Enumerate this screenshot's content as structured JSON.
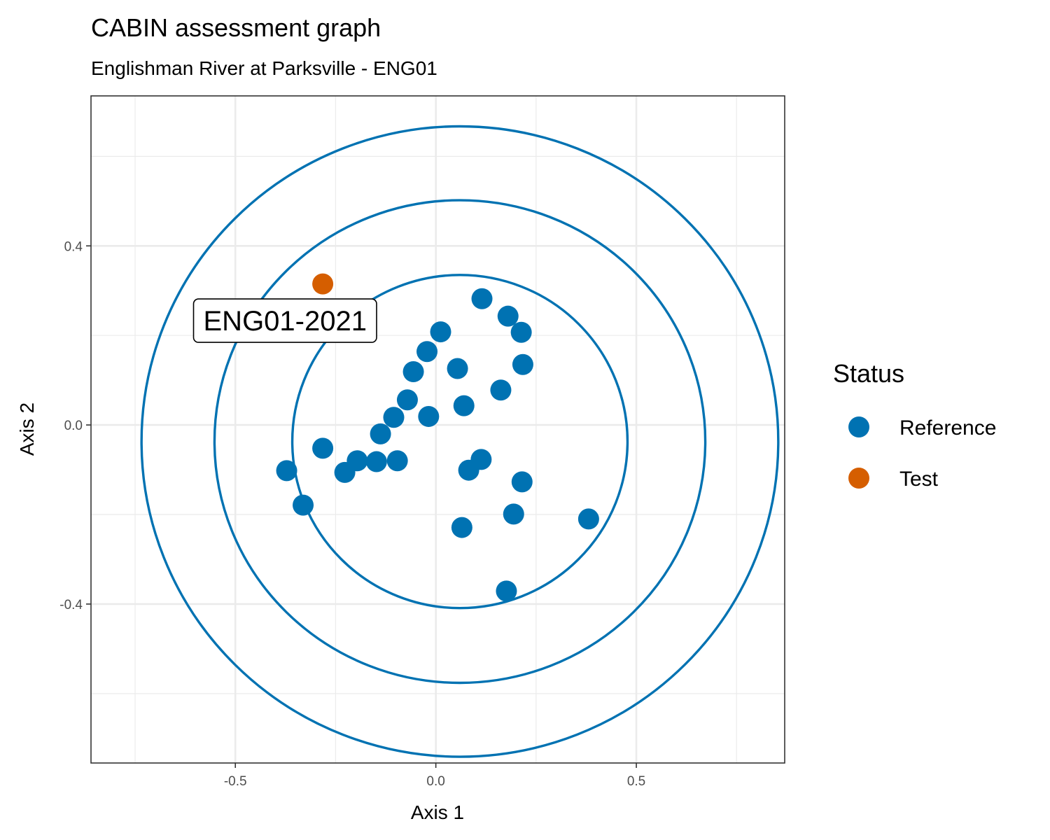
{
  "chart_data": {
    "type": "scatter",
    "title": "CABIN assessment graph",
    "subtitle": "Englishman River at Parksville - ENG01",
    "xlabel": "Axis 1",
    "ylabel": "Axis 2",
    "xlim": [
      -0.86,
      0.87
    ],
    "ylim": [
      -0.755,
      0.735
    ],
    "x_ticks": [
      -0.5,
      0.0,
      0.5
    ],
    "x_tick_labels": [
      "-0.5",
      "0.0",
      "0.5"
    ],
    "y_ticks": [
      -0.4,
      0.0,
      0.4
    ],
    "y_tick_labels": [
      "-0.4",
      "0.0",
      "0.4"
    ],
    "x_minor": [
      -0.75,
      -0.25,
      0.25,
      0.75
    ],
    "y_minor": [
      -0.6,
      -0.2,
      0.2,
      0.6
    ],
    "grid": true,
    "legend": {
      "title": "Status",
      "position": "right",
      "entries": [
        {
          "label": "Reference",
          "color": "#0072B2"
        },
        {
          "label": "Test",
          "color": "#D55E00"
        }
      ]
    },
    "colors": {
      "reference": "#0072B2",
      "test": "#D55E00",
      "ellipse": "#0072B2"
    },
    "series": [
      {
        "name": "Reference",
        "points": [
          [
            0.115,
            0.282
          ],
          [
            0.18,
            0.243
          ],
          [
            0.213,
            0.207
          ],
          [
            0.012,
            0.208
          ],
          [
            -0.022,
            0.164
          ],
          [
            0.217,
            0.135
          ],
          [
            -0.056,
            0.119
          ],
          [
            0.054,
            0.126
          ],
          [
            0.162,
            0.078
          ],
          [
            -0.071,
            0.056
          ],
          [
            0.07,
            0.043
          ],
          [
            -0.105,
            0.017
          ],
          [
            -0.018,
            0.019
          ],
          [
            -0.138,
            -0.02
          ],
          [
            -0.282,
            -0.052
          ],
          [
            -0.372,
            -0.102
          ],
          [
            -0.196,
            -0.08
          ],
          [
            -0.148,
            -0.082
          ],
          [
            -0.096,
            -0.08
          ],
          [
            0.113,
            -0.077
          ],
          [
            0.082,
            -0.101
          ],
          [
            -0.227,
            -0.106
          ],
          [
            0.215,
            -0.127
          ],
          [
            -0.331,
            -0.179
          ],
          [
            0.194,
            -0.199
          ],
          [
            0.381,
            -0.21
          ],
          [
            0.065,
            -0.229
          ],
          [
            0.176,
            -0.371
          ]
        ]
      },
      {
        "name": "Test",
        "points": [
          [
            -0.282,
            0.315
          ]
        ]
      }
    ],
    "ellipses": [
      {
        "cx": 0.06,
        "cy": -0.037,
        "rx": 0.418,
        "ry": 0.372
      },
      {
        "cx": 0.06,
        "cy": -0.037,
        "rx": 0.612,
        "ry": 0.539
      },
      {
        "cx": 0.06,
        "cy": -0.037,
        "rx": 0.794,
        "ry": 0.704
      }
    ],
    "annotations": [
      {
        "text": "ENG01-2021",
        "x": -0.376,
        "y": 0.233
      }
    ]
  }
}
